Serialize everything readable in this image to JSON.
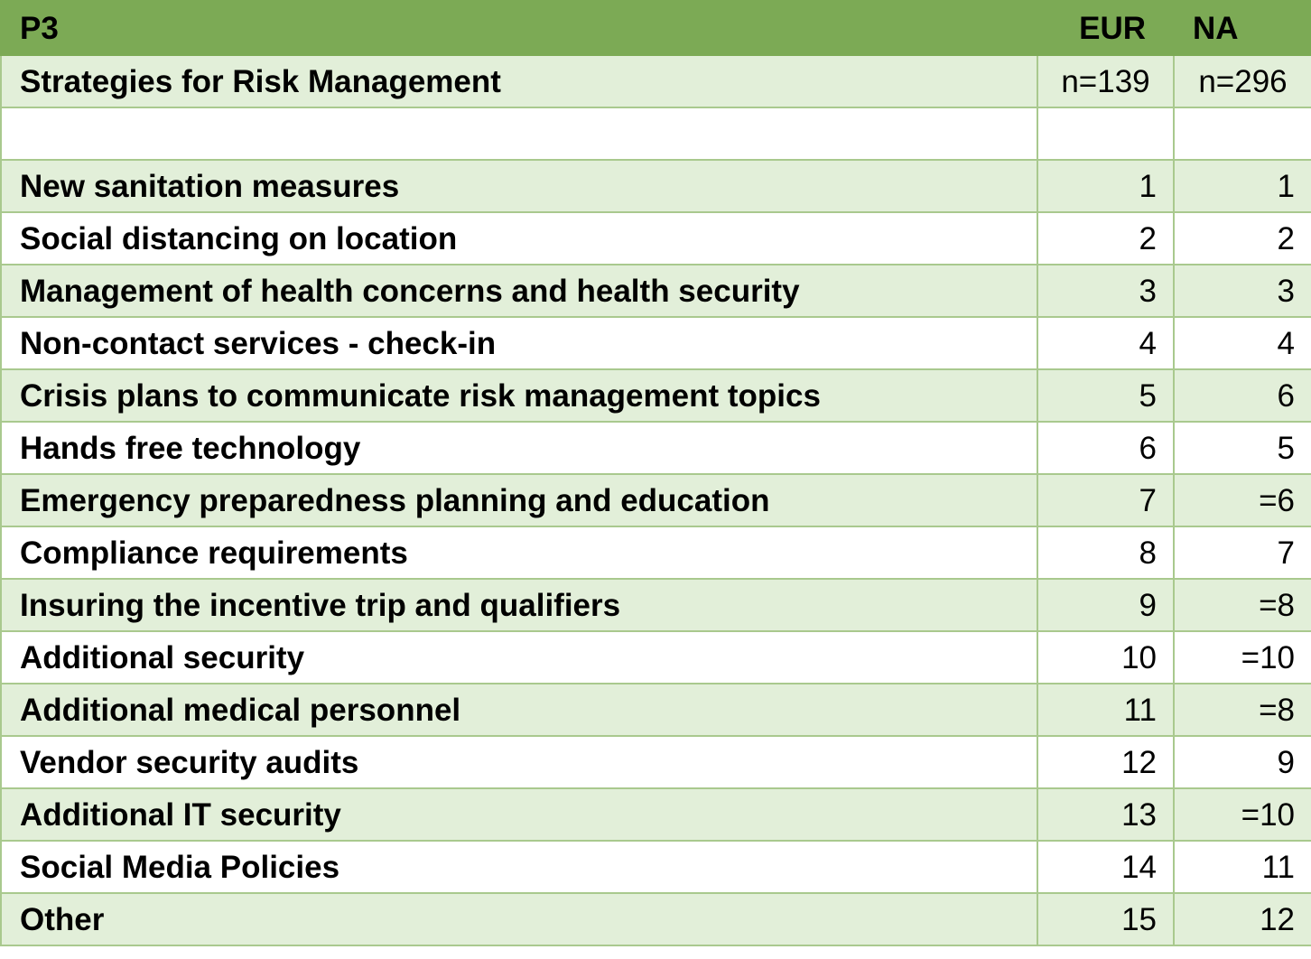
{
  "header": {
    "title": "P3",
    "col_eur": "EUR",
    "col_na": "NA"
  },
  "subheader": {
    "label": "Strategies for Risk Management",
    "n_eur": "n=139",
    "n_na": "n=296"
  },
  "rows": [
    {
      "label": "New sanitation measures",
      "eur": "1",
      "na": "1"
    },
    {
      "label": "Social distancing on location",
      "eur": "2",
      "na": "2"
    },
    {
      "label": "Management of health concerns and health security",
      "eur": "3",
      "na": "3"
    },
    {
      "label": "Non-contact services - check-in",
      "eur": "4",
      "na": "4"
    },
    {
      "label": "Crisis plans to communicate risk management topics",
      "eur": "5",
      "na": "6"
    },
    {
      "label": "Hands free technology",
      "eur": "6",
      "na": "5"
    },
    {
      "label": "Emergency preparedness planning and education",
      "eur": "7",
      "na": "=6"
    },
    {
      "label": "Compliance requirements",
      "eur": "8",
      "na": "7"
    },
    {
      "label": "Insuring the incentive trip and qualifiers",
      "eur": "9",
      "na": "=8"
    },
    {
      "label": "Additional security",
      "eur": "10",
      "na": "=10"
    },
    {
      "label": "Additional medical personnel",
      "eur": "11",
      "na": "=8"
    },
    {
      "label": "Vendor security audits",
      "eur": "12",
      "na": "9"
    },
    {
      "label": "Additional IT security",
      "eur": "13",
      "na": "=10"
    },
    {
      "label": "Social Media Policies",
      "eur": "14",
      "na": "11"
    },
    {
      "label": "Other",
      "eur": "15",
      "na": "12"
    }
  ],
  "colors": {
    "header_green": "#7caa55",
    "band_light_green": "#e2efd9",
    "grid_line": "#a9c98e"
  }
}
